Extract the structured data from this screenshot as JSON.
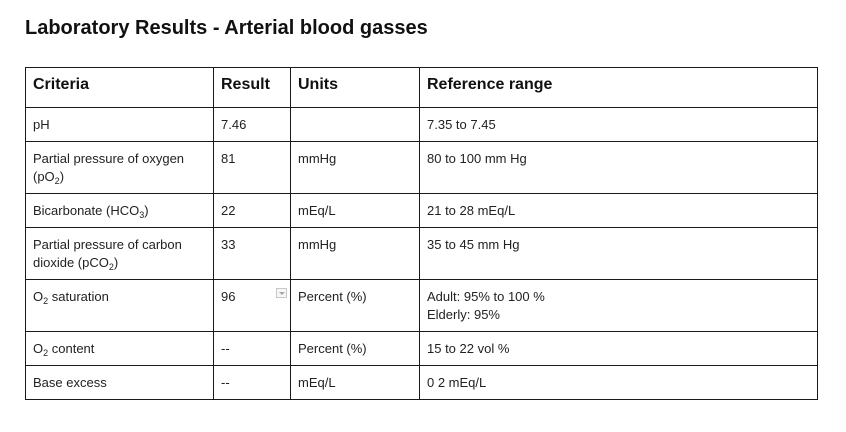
{
  "title": "Laboratory Results - Arterial blood gasses",
  "headers": {
    "criteria": "Criteria",
    "result": "Result",
    "units": "Units",
    "reference": "Reference range"
  },
  "rows": [
    {
      "criteria": "pH",
      "result": "7.46",
      "units": "",
      "reference": [
        "7.35 to 7.45"
      ]
    },
    {
      "criteria_pre": "Partial pressure of oxygen (pO",
      "criteria_sub": "2",
      "criteria_post": ")",
      "result": "81",
      "units": "mmHg",
      "reference": [
        "80 to 100 mm Hg"
      ]
    },
    {
      "criteria_pre": "Bicarbonate (HCO",
      "criteria_sub": "3",
      "criteria_post": ")",
      "result": "22",
      "units": "mEq/L",
      "reference": [
        "21 to 28 mEq/L"
      ]
    },
    {
      "criteria_pre": "Partial pressure of carbon dioxide (pCO",
      "criteria_sub": "2",
      "criteria_post": ")",
      "result": "33",
      "units": "mmHg",
      "reference": [
        "35 to 45 mm Hg"
      ]
    },
    {
      "criteria_pre": "O",
      "criteria_sub": "2",
      "criteria_post": " saturation",
      "result": "96",
      "units": "Percent (%)",
      "reference": [
        "Adult: 95% to 100 %",
        "Elderly: 95%"
      ]
    },
    {
      "criteria_pre": "O",
      "criteria_sub": "2",
      "criteria_post": " content",
      "result": "--",
      "units": "Percent (%)",
      "reference": [
        "15 to 22 vol %"
      ]
    },
    {
      "criteria": "Base excess",
      "result": "--",
      "units": "mEq/L",
      "reference": [
        "0 2 mEq/L"
      ]
    }
  ],
  "icons": {
    "result_dropdown": "chevron-down-icon"
  }
}
